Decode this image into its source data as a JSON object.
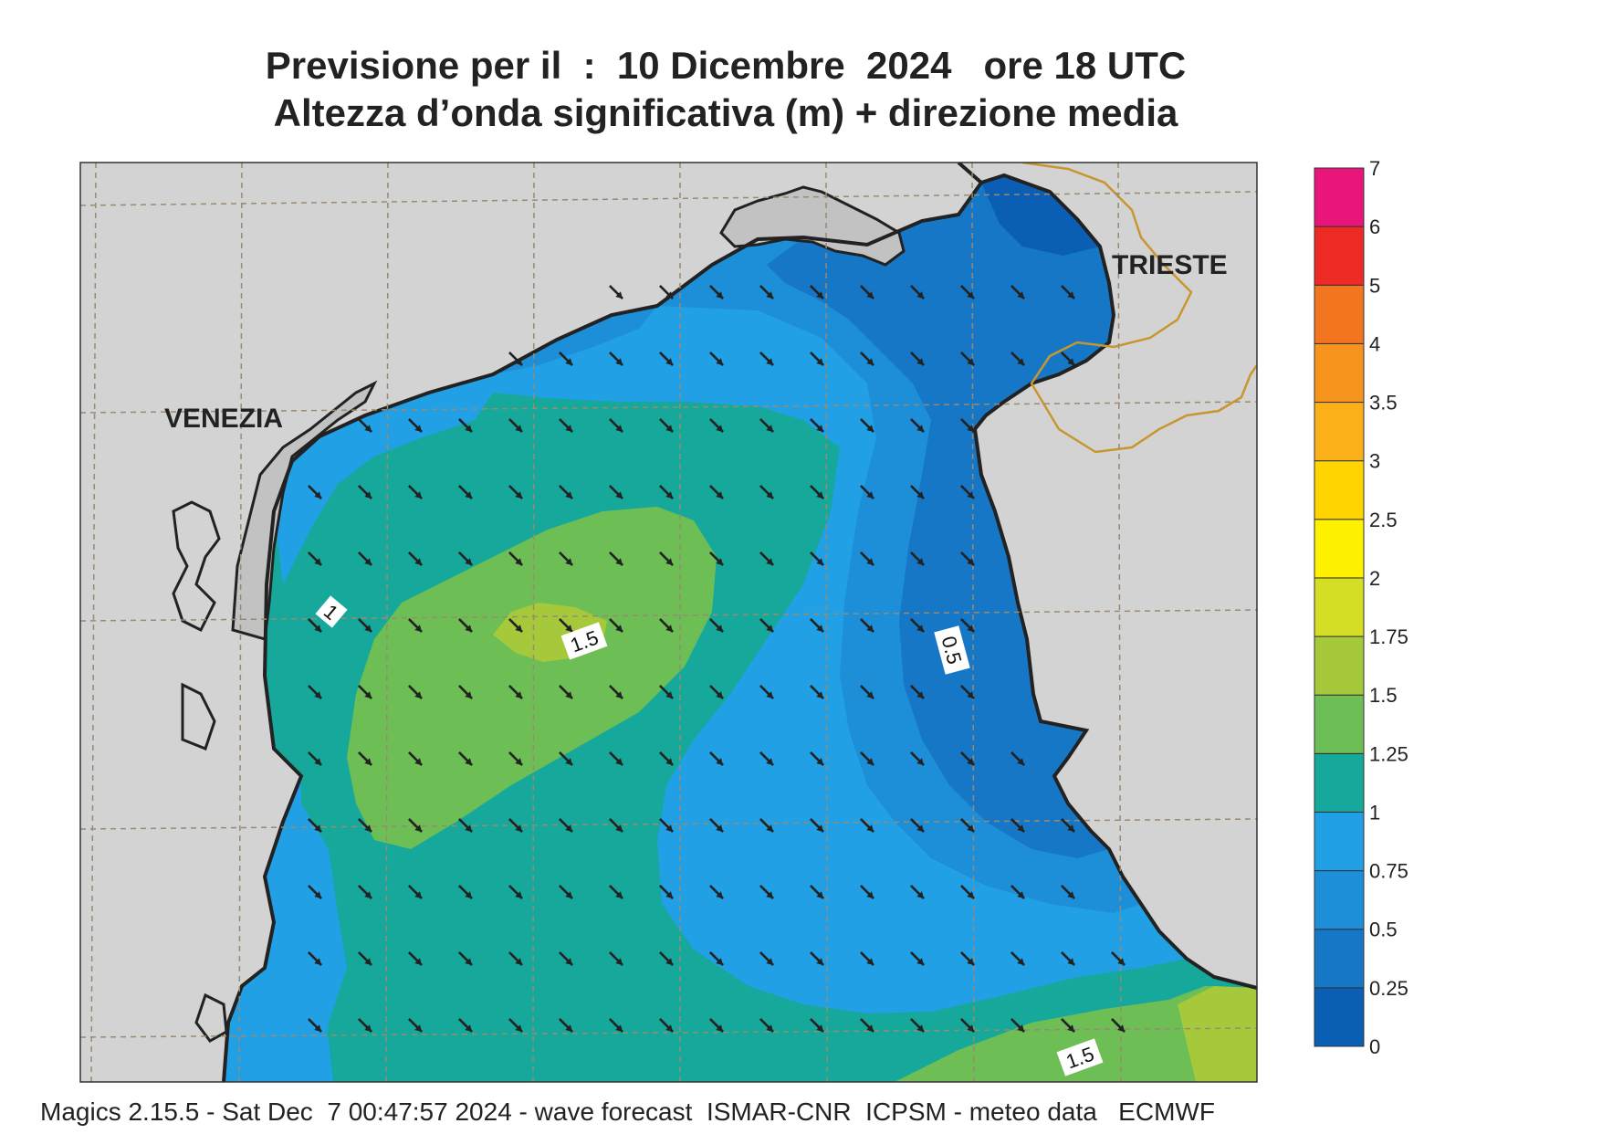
{
  "title": {
    "line1": "Previsione per il  :  10 Dicembre  2024   ore 18 UTC",
    "line2": "Altezza d’onda significativa (m) + direzione media"
  },
  "map": {
    "cities": [
      {
        "name": "VENEZIA"
      },
      {
        "name": "TRIESTE"
      }
    ],
    "contour_labels": [
      "1",
      "1.5",
      "0.5",
      "1.5"
    ],
    "land_color": "#d3d3d3",
    "coast_color": "#222222",
    "border_color": "#c8962f",
    "grid_color": "#9a8a70",
    "arrow_color": "#222222",
    "arrow_direction": "toward south-west"
  },
  "colorbar": {
    "ticks": [
      "7",
      "6",
      "5",
      "4",
      "3.5",
      "3",
      "2.5",
      "2",
      "1.75",
      "1.5",
      "1.25",
      "1",
      "0.75",
      "0.5",
      "0.25",
      "0"
    ],
    "bins": [
      {
        "range": "0-0.25",
        "color": "#0a5fb5"
      },
      {
        "range": "0.25-0.5",
        "color": "#1677c7"
      },
      {
        "range": "0.5-0.75",
        "color": "#1d8ed8"
      },
      {
        "range": "0.75-1",
        "color": "#21a0e6"
      },
      {
        "range": "1-1.25",
        "color": "#16a89a"
      },
      {
        "range": "1.25-1.5",
        "color": "#6dbe54"
      },
      {
        "range": "1.5-1.75",
        "color": "#a6c93c"
      },
      {
        "range": "1.75-2",
        "color": "#d4de25"
      },
      {
        "range": "2-2.5",
        "color": "#fff200"
      },
      {
        "range": "2.5-3",
        "color": "#ffd400"
      },
      {
        "range": "3-3.5",
        "color": "#fbb01a"
      },
      {
        "range": "3.5-4",
        "color": "#f7941d"
      },
      {
        "range": "4-5",
        "color": "#f47520"
      },
      {
        "range": "5-6",
        "color": "#ee2a24"
      },
      {
        "range": "6-7",
        "color": "#e9157a"
      }
    ]
  },
  "footer": "Magics 2.15.5 - Sat Dec  7 00:47:57 2024 - wave forecast  ISMAR-CNR  ICPSM - meteo data   ECMWF"
}
